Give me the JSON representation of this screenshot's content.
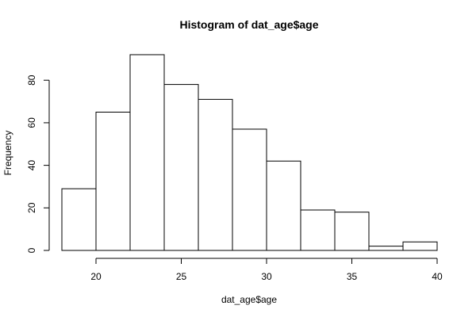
{
  "chart_data": {
    "type": "bar",
    "title": "Histogram of dat_age$age",
    "xlabel": "dat_age$age",
    "ylabel": "Frequency",
    "bins": [
      {
        "start": 18,
        "end": 20,
        "count": 29
      },
      {
        "start": 20,
        "end": 22,
        "count": 65
      },
      {
        "start": 22,
        "end": 24,
        "count": 92
      },
      {
        "start": 24,
        "end": 26,
        "count": 78
      },
      {
        "start": 26,
        "end": 28,
        "count": 71
      },
      {
        "start": 28,
        "end": 30,
        "count": 57
      },
      {
        "start": 30,
        "end": 32,
        "count": 42
      },
      {
        "start": 32,
        "end": 34,
        "count": 19
      },
      {
        "start": 34,
        "end": 36,
        "count": 18
      },
      {
        "start": 36,
        "end": 38,
        "count": 2
      },
      {
        "start": 38,
        "end": 40,
        "count": 4
      }
    ],
    "xlim": [
      18,
      40
    ],
    "ylim": [
      0,
      92
    ],
    "xticks": [
      20,
      25,
      30,
      35,
      40
    ],
    "yticks": [
      0,
      20,
      40,
      60,
      80
    ],
    "bar_fill": "#ffffff",
    "bar_stroke": "#000000",
    "grid": false,
    "legend": "none"
  }
}
